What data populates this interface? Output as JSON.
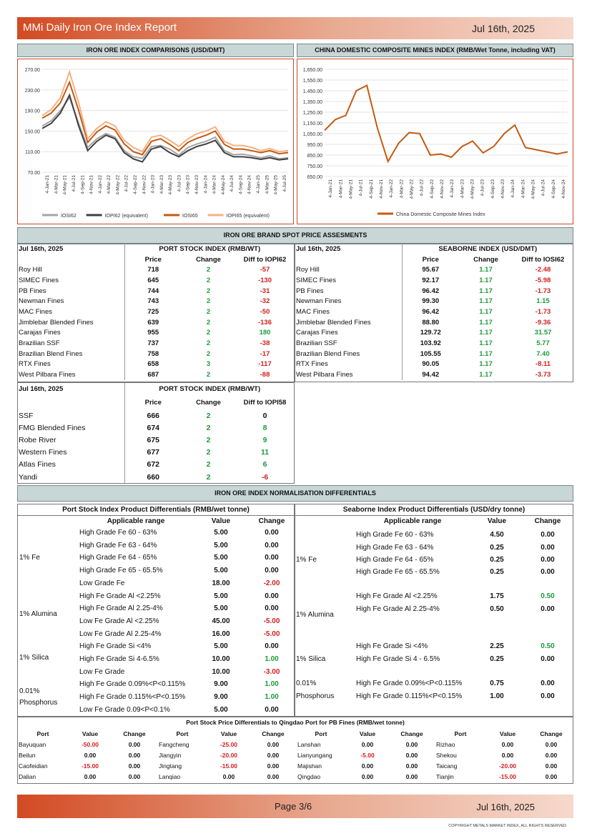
{
  "header": {
    "title": "MMi Daily Iron Ore Index Report",
    "date": "Jul 16th, 2025"
  },
  "chart1": {
    "title": "IRON ORE INDEX COMPARISONS (USD/DMT)"
  },
  "chart2": {
    "title": "CHINA DOMESTIC COMPOSITE MINES INDEX (RMB/Wet Tonne, including VAT)"
  },
  "chart_data": [
    {
      "type": "line",
      "title": "IRON ORE INDEX COMPARISONS (USD/DMT)",
      "yticks": [
        "70.00",
        "110.00",
        "150.00",
        "190.00",
        "230.00",
        "270.00"
      ],
      "ylim": [
        70,
        270
      ],
      "xticks": [
        "4-Jan-21",
        "4-Mar-21",
        "4-May-21",
        "4-Jul-21",
        "4-Sep-21",
        "4-Nov-21",
        "4-Jan-22",
        "4-Mar-22",
        "4-May-22",
        "4-Jul-22",
        "4-Sep-22",
        "4-Nov-22",
        "4-Jan-23",
        "4-Mar-23",
        "4-May-23",
        "4-Jul-23",
        "4-Sep-23",
        "4-Nov-23",
        "4-Jan-24",
        "4-Mar-24",
        "4-May-24",
        "4-Jul-24",
        "4-Sep-24",
        "4-Nov-24",
        "4-Jan-25",
        "4-Mar-25",
        "4-May-25",
        "4-Jul-25"
      ],
      "grid": true,
      "legend": "bottom",
      "series": [
        {
          "name": "IOSI62",
          "color": "#a6a6a6",
          "values": [
            160,
            170,
            190,
            215,
            165,
            118,
            135,
            145,
            138,
            112,
            100,
            97,
            120,
            122,
            115,
            103,
            118,
            125,
            130,
            138,
            112,
            104,
            105,
            102,
            98,
            102,
            96,
            98
          ]
        },
        {
          "name": "IOPI62 (equivalent)",
          "color": "#404040",
          "values": [
            155,
            165,
            185,
            220,
            160,
            112,
            130,
            142,
            135,
            108,
            96,
            90,
            115,
            120,
            108,
            100,
            112,
            120,
            125,
            132,
            108,
            100,
            100,
            98,
            95,
            98,
            94,
            96
          ]
        },
        {
          "name": "IOSI65",
          "color": "#c55a11",
          "values": [
            175,
            185,
            205,
            245,
            190,
            128,
            148,
            160,
            152,
            125,
            110,
            104,
            130,
            135,
            124,
            112,
            128,
            136,
            142,
            150,
            124,
            115,
            115,
            112,
            108,
            112,
            106,
            108
          ]
        },
        {
          "name": "IOPI65 (equivalent)",
          "color": "#f4b183",
          "values": [
            180,
            192,
            215,
            265,
            205,
            135,
            155,
            168,
            160,
            132,
            118,
            110,
            138,
            142,
            132,
            120,
            135,
            145,
            150,
            158,
            130,
            122,
            122,
            118,
            112,
            116,
            110,
            112
          ]
        }
      ]
    },
    {
      "type": "line",
      "title": "CHINA DOMESTIC COMPOSITE MINES INDEX (RMB/Wet Tonne, including VAT)",
      "yticks": [
        "650.00",
        "750.00",
        "850.00",
        "950.00",
        "1,050.00",
        "1,150.00",
        "1,250.00",
        "1,350.00",
        "1,450.00",
        "1,550.00",
        "1,650.00"
      ],
      "ylim": [
        650,
        1650
      ],
      "xticks": [
        "4-Jan-21",
        "4-Mar-21",
        "4-May-21",
        "4-Jul-21",
        "4-Sep-21",
        "4-Nov-21",
        "4-Jan-22",
        "4-Mar-22",
        "4-May-22",
        "4-Jul-22",
        "4-Sep-22",
        "4-Nov-22",
        "4-Jan-23",
        "4-Mar-23",
        "4-May-23",
        "4-Jul-23",
        "4-Sep-23",
        "4-Nov-23",
        "4-Jan-24",
        "4-Mar-24",
        "4-May-24",
        "4-Jul-24",
        "4-Sep-24",
        "4-Nov-24"
      ],
      "grid": true,
      "legend": "bottom",
      "series": [
        {
          "name": "China Domestic Composite Mines Index",
          "color": "#c55a11",
          "values": [
            1080,
            1180,
            1220,
            1450,
            1500,
            1100,
            790,
            960,
            1060,
            1050,
            850,
            860,
            830,
            930,
            980,
            870,
            930,
            1050,
            1130,
            920,
            900,
            880,
            860,
            880
          ]
        }
      ]
    }
  ],
  "brand": {
    "title": "IRON ORE BRAND SPOT PRICE ASSESMENTS",
    "date": "Jul 16th, 2025",
    "port_title": "PORT STOCK INDEX (RMB/WT)",
    "sea_title": "SEABORNE INDEX (USD/DMT)",
    "cols": [
      "Price",
      "Change",
      "Diff to IOPI62"
    ],
    "sea_cols": [
      "Price",
      "Change",
      "Diff to IOSI62"
    ],
    "rows": [
      [
        "Roy Hill",
        "718",
        "2",
        "-57",
        "Roy Hill",
        "95.67",
        "1.17",
        "-2.48"
      ],
      [
        "SIMEC Fines",
        "645",
        "2",
        "-130",
        "SIMEC Fines",
        "92.17",
        "1.17",
        "-5.98"
      ],
      [
        "PB Fines",
        "744",
        "2",
        "-31",
        "PB Fines",
        "96.42",
        "1.17",
        "-1.73"
      ],
      [
        "Newman Fines",
        "743",
        "2",
        "-32",
        "Newman Fines",
        "99.30",
        "1.17",
        "1.15"
      ],
      [
        "MAC Fines",
        "725",
        "2",
        "-50",
        "MAC Fines",
        "96.42",
        "1.17",
        "-1.73"
      ],
      [
        "Jimblebar Blended Fines",
        "639",
        "2",
        "-136",
        "Jimblebar Blended Fines",
        "88.80",
        "1.17",
        "-9.36"
      ],
      [
        "Carajas Fines",
        "955",
        "2",
        "180",
        "Carajas Fines",
        "129.72",
        "1.17",
        "31.57"
      ],
      [
        "Brazilian SSF",
        "737",
        "2",
        "-38",
        "Brazilian SSF",
        "103.92",
        "1.17",
        "5.77"
      ],
      [
        "Brazilian Blend Fines",
        "758",
        "2",
        "-17",
        "Brazilian Blend Fines",
        "105.55",
        "1.17",
        "7.40"
      ],
      [
        "RTX Fines",
        "658",
        "3",
        "-117",
        "RTX Fines",
        "90.05",
        "1.17",
        "-8.11"
      ],
      [
        "West Pilbara Fines",
        "687",
        "2",
        "-88",
        "West Pilbara Fines",
        "94.42",
        "1.17",
        "-3.73"
      ]
    ]
  },
  "brand58": {
    "date": "Jul 16th, 2025",
    "title": "PORT STOCK INDEX (RMB/WT)",
    "cols": [
      "Price",
      "Change",
      "Diff to IOPI58"
    ],
    "rows": [
      [
        "SSF",
        "666",
        "2",
        "0"
      ],
      [
        "FMG Blended Fines",
        "674",
        "2",
        "8"
      ],
      [
        "Robe River",
        "675",
        "2",
        "9"
      ],
      [
        "Western Fines",
        "677",
        "2",
        "11"
      ],
      [
        "Atlas Fines",
        "672",
        "2",
        "6"
      ],
      [
        "Yandi",
        "660",
        "2",
        "-6"
      ]
    ]
  },
  "norm": {
    "title": "IRON ORE INDEX NORMALISATION DIFFERENTIALS",
    "port_title": "Port Stock Index Product Differentials (RMB/wet tonne)",
    "sea_title": "Seaborne Index Product Differentials (USD/dry tonne)",
    "cols": [
      "Applicable range",
      "Value",
      "Change"
    ],
    "port_groups": [
      "1% Fe",
      "1% Alumina",
      "1% Silica",
      "0.01%",
      "Phosphorus"
    ],
    "port_rows": [
      [
        "High Grade Fe 60 - 63%",
        "5.00",
        "0.00"
      ],
      [
        "High Grade Fe 63 - 64%",
        "5.00",
        "0.00"
      ],
      [
        "High Grade Fe 64 - 65%",
        "5.00",
        "0.00"
      ],
      [
        "High Grade Fe 65 - 65.5%",
        "5.00",
        "0.00"
      ],
      [
        "Low Grade Fe",
        "18.00",
        "-2.00"
      ],
      [
        "High Fe Grade Al <2.25%",
        "5.00",
        "0.00"
      ],
      [
        "High Fe Grade Al 2.25-4%",
        "5.00",
        "0.00"
      ],
      [
        "Low Fe Grade Al <2.25%",
        "45.00",
        "-5.00"
      ],
      [
        "Low Fe Grade Al 2.25-4%",
        "16.00",
        "-5.00"
      ],
      [
        "High Fe Grade Si <4%",
        "5.00",
        "0.00"
      ],
      [
        "High Fe Grade Si 4-6.5%",
        "10.00",
        "1.00"
      ],
      [
        "Low Fe Grade",
        "10.00",
        "-3.00"
      ],
      [
        "High Fe Grade 0.09%<P<0.115%",
        "9.00",
        "1.00"
      ],
      [
        "High Fe Grade 0.115%<P<0.15%",
        "9.00",
        "1.00"
      ],
      [
        "Low Fe Grade 0.09<P<0.1%",
        "5.00",
        "0.00"
      ]
    ],
    "sea_groups": [
      "1% Fe",
      "1% Alumina",
      "1% Silica",
      "0.01%",
      "Phosphorus"
    ],
    "sea_rows": [
      [
        "High Grade Fe 60 - 63%",
        "4.50",
        "0.00"
      ],
      [
        "High Grade Fe 63 - 64%",
        "0.25",
        "0.00"
      ],
      [
        "High Grade Fe 64 - 65%",
        "0.25",
        "0.00"
      ],
      [
        "High Grade Fe 65 - 65.5%",
        "0.25",
        "0.00"
      ],
      [
        "High Fe Grade Al <2.25%",
        "1.75",
        "0.50"
      ],
      [
        "High Fe Grade Al 2.25-4%",
        "0.50",
        "0.00"
      ],
      [
        "High Fe Grade Si <4%",
        "2.25",
        "0.50"
      ],
      [
        "High Fe Grade Si 4 - 6.5%",
        "0.25",
        "0.00"
      ],
      [
        "High Fe Grade 0.09%<P<0.115%",
        "0.75",
        "0.00"
      ],
      [
        "High Fe Grade 0.115%<P<0.15%",
        "1.00",
        "0.00"
      ]
    ]
  },
  "ports": {
    "title": "Port Stock Price Differentials to Qingdao Port for PB Fines (RMB/wet tonne)",
    "cols": [
      "Port",
      "Value",
      "Change"
    ],
    "rows": [
      [
        "Bayuquan",
        "-50.00",
        "0.00",
        "Fangcheng",
        "-25.00",
        "0.00",
        "Lanshan",
        "0.00",
        "0.00",
        "Rizhao",
        "0.00",
        "0.00"
      ],
      [
        "Beilun",
        "0.00",
        "0.00",
        "Jiangyin",
        "-20.00",
        "0.00",
        "Lianyungang",
        "-5.00",
        "0.00",
        "Shekou",
        "0.00",
        "0.00"
      ],
      [
        "Caofeidian",
        "-15.00",
        "0.00",
        "Jingtang",
        "-15.00",
        "0.00",
        "Majishan",
        "0.00",
        "0.00",
        "Taicang",
        "-20.00",
        "0.00"
      ],
      [
        "Dalian",
        "0.00",
        "0.00",
        "Lanqiao",
        "0.00",
        "0.00",
        "Qingdao",
        "0.00",
        "0.00",
        "Tianjin",
        "-15.00",
        "0.00"
      ]
    ]
  },
  "footer": {
    "page": "Page 3/6",
    "date": "Jul 16th, 2025",
    "copyright": "COPYRIGHT METALS MARKET INDEX, ALL RIGHTS RESERVED"
  }
}
